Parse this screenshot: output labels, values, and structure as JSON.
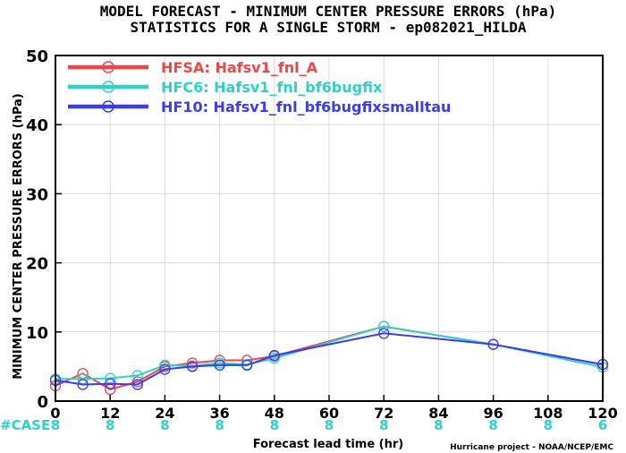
{
  "chart_data": {
    "type": "line",
    "title": "MODEL FORECAST - MINIMUM CENTER PRESSURE ERRORS (hPa)",
    "subtitle": "STATISTICS FOR A SINGLE STORM - ep082021_HILDA",
    "xlabel": "Forecast lead time (hr)",
    "ylabel": "MINIMUM CENTER PRESSURE ERRORS (hPa)",
    "xlim": [
      0,
      120
    ],
    "ylim": [
      0,
      50
    ],
    "x_ticks": [
      0,
      12,
      24,
      36,
      48,
      60,
      72,
      84,
      96,
      108,
      120
    ],
    "y_ticks": [
      0,
      10,
      20,
      30,
      40,
      50
    ],
    "legend_position": "top-left",
    "series": [
      {
        "name": "HFSA: Hafsv1_fnl_A",
        "color": "#f04545",
        "points": [
          [
            0,
            2.2
          ],
          [
            6,
            4.0
          ],
          [
            12,
            1.7
          ],
          [
            18,
            2.8
          ],
          [
            24,
            5.0
          ],
          [
            30,
            5.5
          ],
          [
            36,
            5.9
          ],
          [
            42,
            5.9
          ],
          [
            48,
            6.5
          ],
          [
            72,
            10.8
          ],
          [
            96,
            8.2
          ],
          [
            120,
            5.3
          ]
        ]
      },
      {
        "name": "HFC6: Hafsv1_fnl_bf6bugfix",
        "color": "#2ed1c8",
        "points": [
          [
            0,
            3.2
          ],
          [
            6,
            3.2
          ],
          [
            12,
            3.3
          ],
          [
            18,
            3.7
          ],
          [
            24,
            5.2
          ],
          [
            30,
            5.1
          ],
          [
            36,
            5.5
          ],
          [
            42,
            5.3
          ],
          [
            48,
            6.2
          ],
          [
            72,
            10.8
          ],
          [
            96,
            8.2
          ],
          [
            120,
            4.9
          ]
        ]
      },
      {
        "name": "HF10: Hafsv1_fnl_bf6bugfixsmalltau",
        "color": "#3b3bf0",
        "points": [
          [
            0,
            3.0
          ],
          [
            6,
            2.4
          ],
          [
            12,
            2.5
          ],
          [
            18,
            2.4
          ],
          [
            24,
            4.6
          ],
          [
            30,
            5.0
          ],
          [
            36,
            5.2
          ],
          [
            42,
            5.2
          ],
          [
            48,
            6.6
          ],
          [
            72,
            9.8
          ],
          [
            96,
            8.2
          ],
          [
            120,
            5.3
          ]
        ]
      }
    ],
    "case_counts": {
      "label": "#CASE",
      "color": "#2ed1c8",
      "x": [
        0,
        12,
        24,
        36,
        48,
        60,
        72,
        84,
        96,
        108,
        120
      ],
      "values": [
        "8",
        "8",
        "8",
        "8",
        "8",
        "8",
        "8",
        "8",
        "8",
        "8",
        "6"
      ]
    }
  },
  "credit": "Hurricane project - NOAA/NCEP/EMC"
}
